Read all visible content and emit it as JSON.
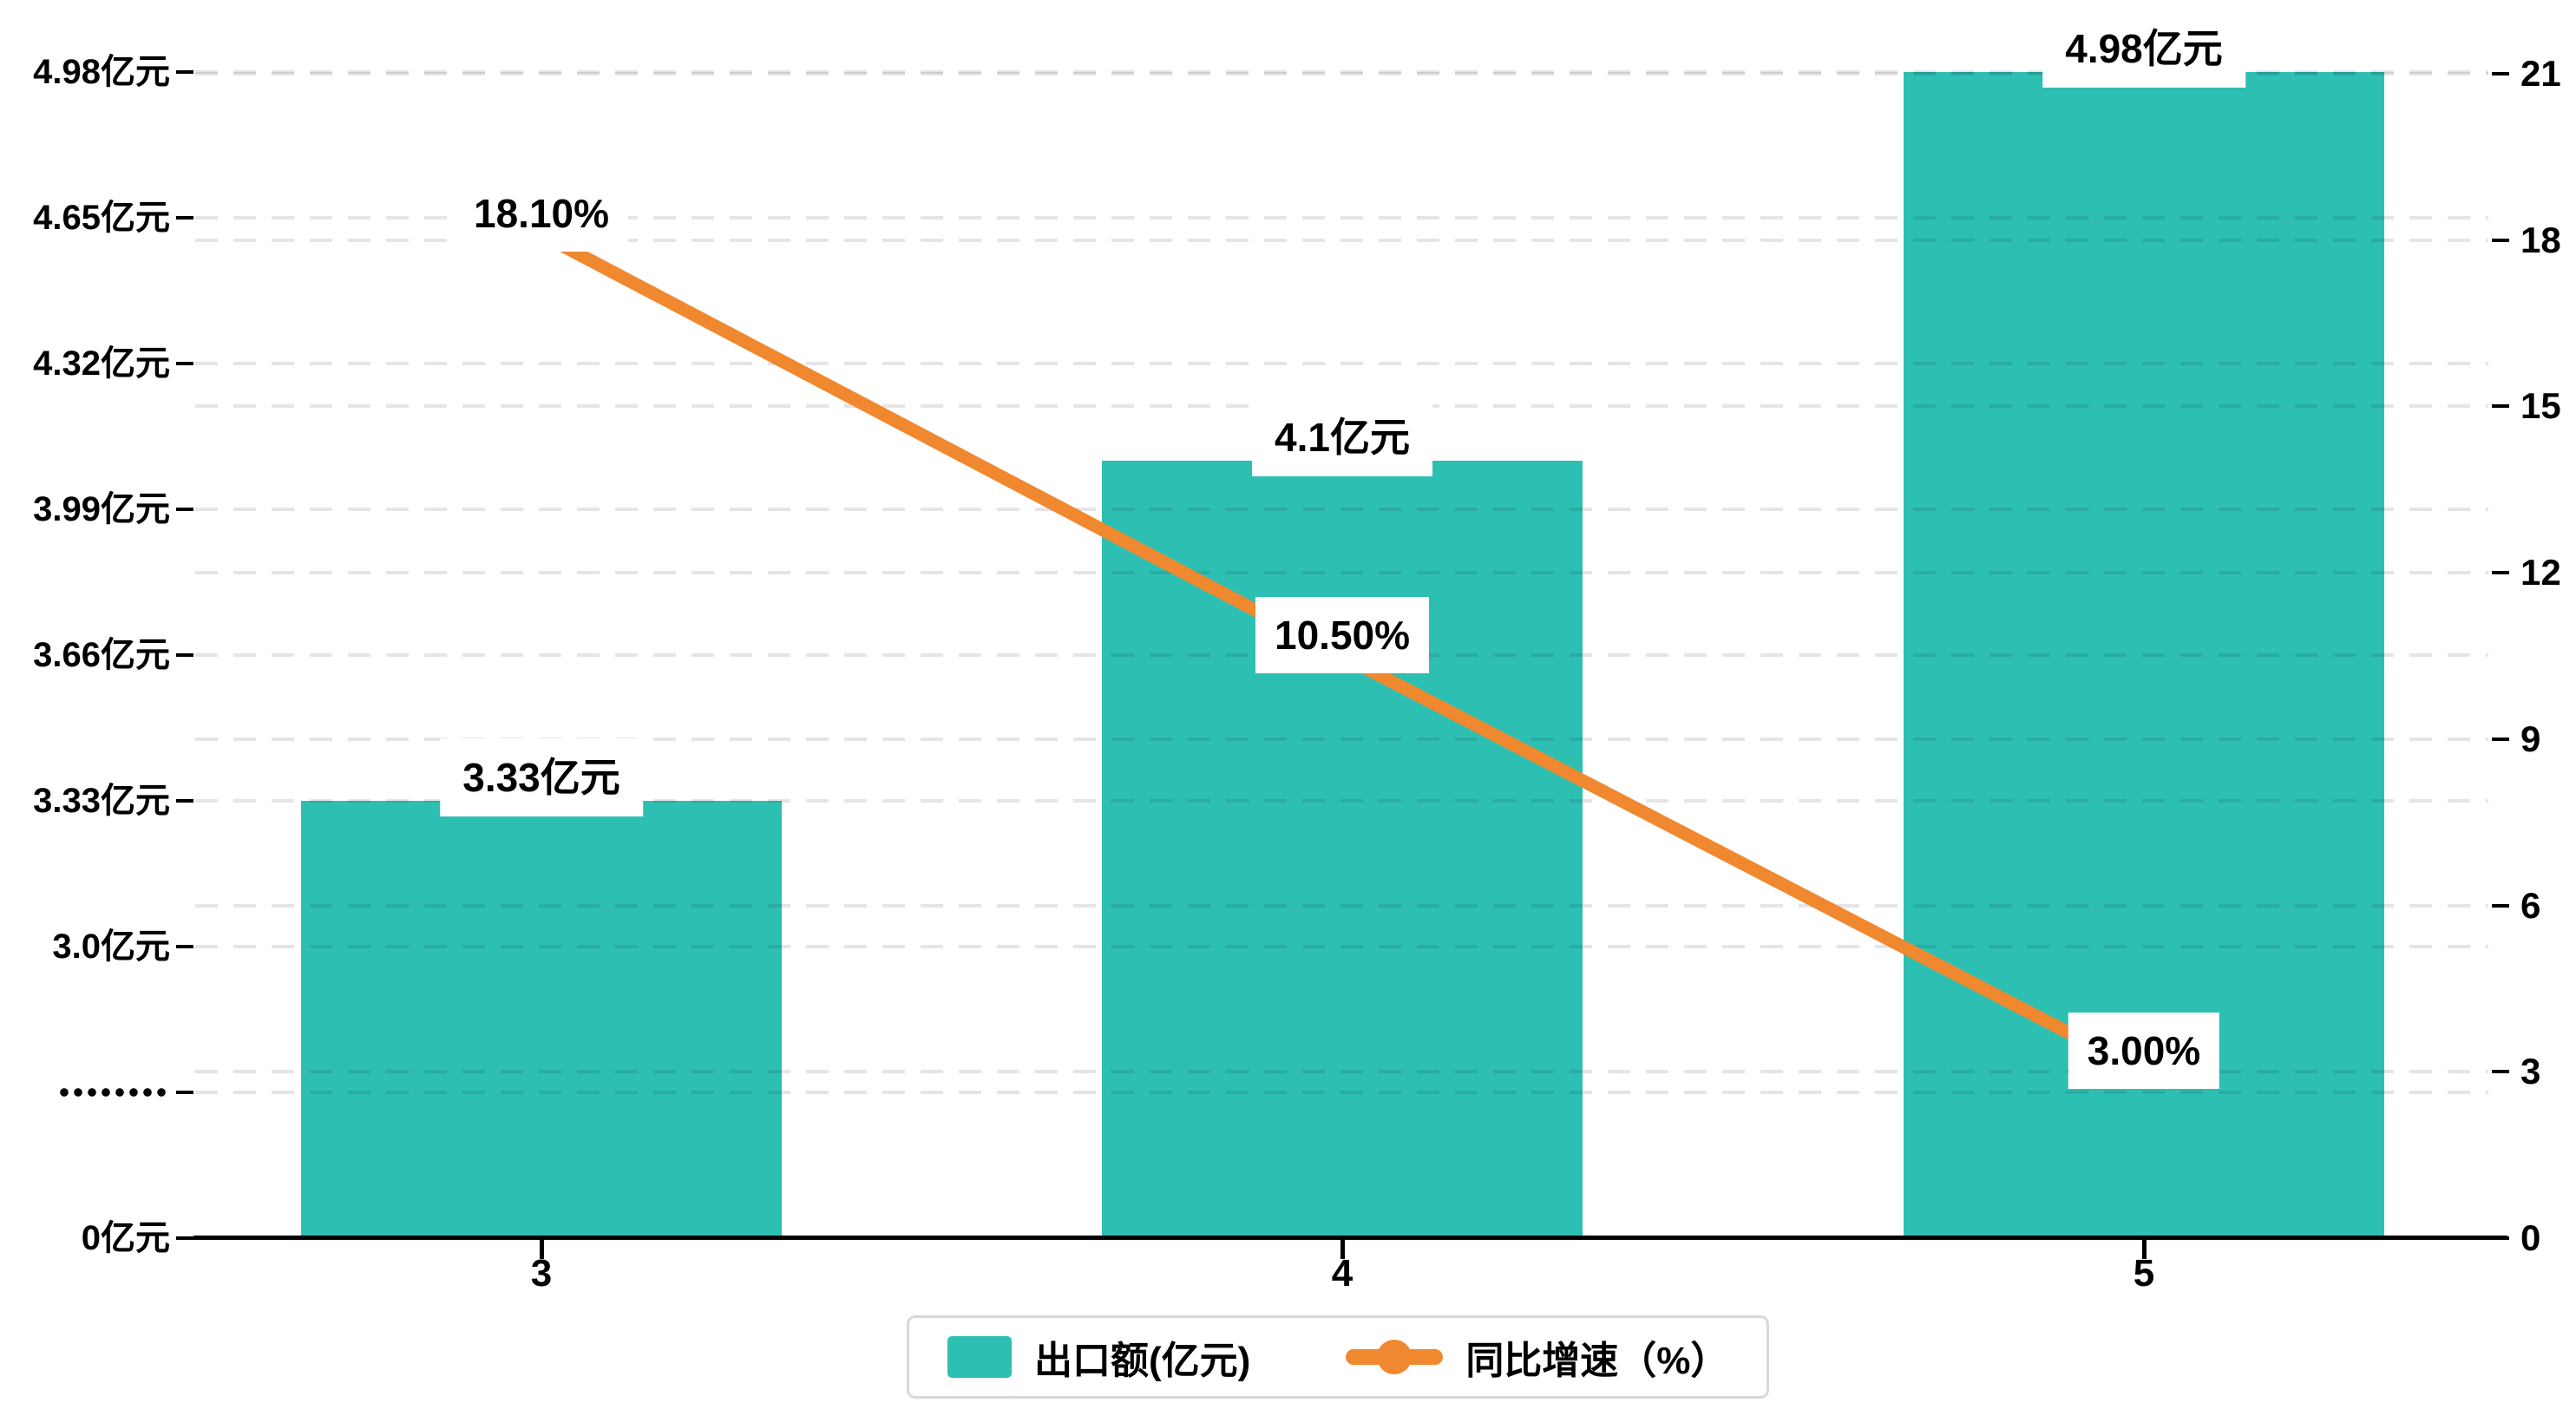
{
  "chart_data": {
    "type": "bar",
    "subtype": "bar-line-dual-axis",
    "categories": [
      "3",
      "4",
      "5"
    ],
    "series": [
      {
        "name": "出口额(亿元)",
        "type": "bar",
        "axis": "left",
        "values": [
          3.33,
          4.1,
          4.98
        ],
        "data_labels": [
          "3.33亿元",
          "4.1亿元",
          "4.98亿元"
        ],
        "color": "#2EBFB3"
      },
      {
        "name": "同比增速（%）",
        "type": "line",
        "axis": "right",
        "values": [
          18.1,
          10.5,
          3.0
        ],
        "data_labels": [
          "18.10%",
          "10.50%",
          "3.00%"
        ],
        "color": "#F0882F"
      }
    ],
    "left_axis": {
      "tick_labels": [
        "4.98亿元",
        "4.65亿元",
        "4.32亿元",
        "3.99亿元",
        "3.66亿元",
        "3.33亿元",
        "3.0亿元",
        "·········",
        "0亿元"
      ],
      "break_row_index": 7,
      "note": "axis break (dotted row) between 0 and 3.0"
    },
    "right_axis": {
      "tick_labels": [
        "21",
        "18",
        "15",
        "12",
        "9",
        "6",
        "3",
        "0"
      ],
      "min": 0,
      "max": 21
    },
    "grid": true,
    "legend_position": "bottom-center",
    "legend": {
      "items": [
        {
          "label": "出口额(亿元)",
          "marker": "bar-swatch",
          "color": "#2EBFB3"
        },
        {
          "label": "同比增速（%）",
          "marker": "line-marker",
          "color": "#F0882F"
        }
      ]
    },
    "title": ""
  },
  "colors": {
    "bar": "#2EBFB3",
    "line": "#F0882F",
    "grid": "rgba(0,0,0,0.10)",
    "axis": "#000000",
    "legend_border": "#D9D9D9",
    "label_box_bg": "#FFFFFF"
  }
}
